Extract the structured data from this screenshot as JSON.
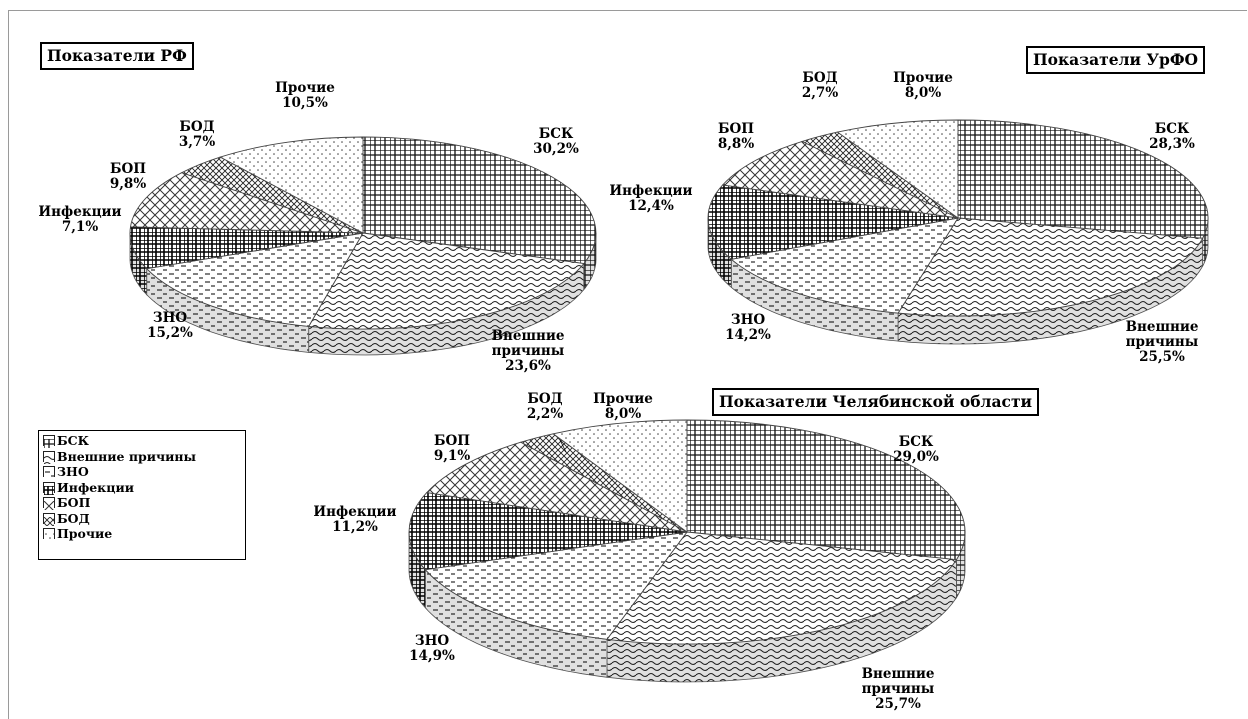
{
  "chart_data": [
    {
      "type": "pie",
      "title": "Показатели РФ",
      "slices": [
        {
          "label_lines": [
            "БСК",
            "30,2%"
          ],
          "value": 30.2
        },
        {
          "label_lines": [
            "Внешние",
            "причины",
            "23,6%"
          ],
          "value": 23.6
        },
        {
          "label_lines": [
            "ЗНО",
            "15,2%"
          ],
          "value": 15.2
        },
        {
          "label_lines": [
            "Инфекции",
            "7,1%"
          ],
          "value": 7.1
        },
        {
          "label_lines": [
            "БОП",
            "9,8%"
          ],
          "value": 9.8
        },
        {
          "label_lines": [
            "БОД",
            "3,7%"
          ],
          "value": 3.7
        },
        {
          "label_lines": [
            "Прочие",
            "10,5%"
          ],
          "value": 10.5
        }
      ]
    },
    {
      "type": "pie",
      "title": "Показатели УрФО",
      "slices": [
        {
          "label_lines": [
            "БСК",
            "28,3%"
          ],
          "value": 28.3
        },
        {
          "label_lines": [
            "Внешние",
            "причины",
            "25,5%"
          ],
          "value": 25.5
        },
        {
          "label_lines": [
            "ЗНО",
            "14,2%"
          ],
          "value": 14.2
        },
        {
          "label_lines": [
            "Инфекции",
            "12,4%"
          ],
          "value": 12.4
        },
        {
          "label_lines": [
            "БОП",
            "8,8%"
          ],
          "value": 8.8
        },
        {
          "label_lines": [
            "БОД",
            "2,7%"
          ],
          "value": 2.7
        },
        {
          "label_lines": [
            "Прочие",
            "8,0%"
          ],
          "value": 8.0
        }
      ]
    },
    {
      "type": "pie",
      "title": "Показатели Челябинской области",
      "slices": [
        {
          "label_lines": [
            "БСК",
            "29,0%"
          ],
          "value": 29.0
        },
        {
          "label_lines": [
            "Внешние",
            "причины",
            "25,7%"
          ],
          "value": 25.7
        },
        {
          "label_lines": [
            "ЗНО",
            "14,9%"
          ],
          "value": 14.9
        },
        {
          "label_lines": [
            "Инфекции",
            "11,2%"
          ],
          "value": 11.2
        },
        {
          "label_lines": [
            "БОП",
            "9,1%"
          ],
          "value": 9.1
        },
        {
          "label_lines": [
            "БОД",
            "2,2%"
          ],
          "value": 2.2
        },
        {
          "label_lines": [
            "Прочие",
            "8,0%"
          ],
          "value": 8.0
        }
      ]
    }
  ],
  "legend": {
    "items": [
      "БСК",
      "Внешние причины",
      "ЗНО",
      "Инфекции",
      "БОП",
      "БОД",
      "Прочие"
    ]
  },
  "patterns": [
    "grid",
    "wave",
    "dash",
    "dense-grid",
    "cross-hatch",
    "dense-cross",
    "dots"
  ]
}
